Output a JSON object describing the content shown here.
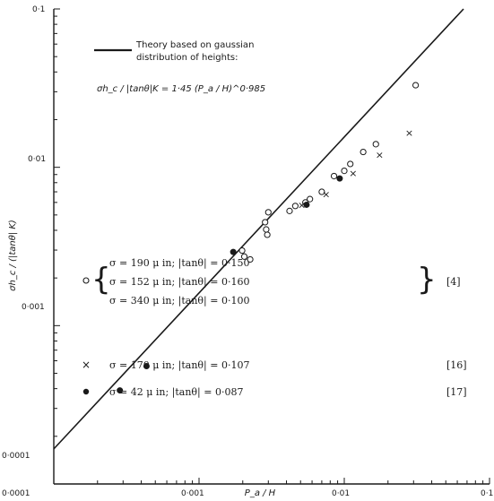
{
  "chart_data": {
    "type": "scatter",
    "x_scale": "log",
    "y_scale": "log",
    "xlim": [
      0.0001,
      0.1
    ],
    "ylim": [
      0.0001,
      0.1
    ],
    "x_ticks": [
      "0·0001",
      "0·001",
      "0·01",
      "0·1"
    ],
    "y_ticks": [
      "0·0001",
      "0·001",
      "0·01",
      "0·1"
    ],
    "xlabel": "P_a / H",
    "ylabel": "σh_c / (|tanθ| K)",
    "grid": false,
    "theory": {
      "label_line1": "Theory based on gaussian",
      "label_line2": "distribution of heights:",
      "equation": "σh_c / |tanθ|K = 1·45 (P_a / H)^0·985",
      "coefficient": 1.45,
      "exponent": 0.985
    },
    "series": [
      {
        "marker": "open-circle",
        "labels": [
          "σ = 190 μ in;  |tanθ| = 0·150",
          "σ = 152 μ in;  |tanθ| = 0·160",
          "σ = 340 μ in;  |tanθ| = 0·100"
        ],
        "reference": "[4]",
        "points": [
          [
            0.00198,
            0.00298
          ],
          [
            0.00205,
            0.00273
          ],
          [
            0.00225,
            0.00262
          ],
          [
            0.00285,
            0.0045
          ],
          [
            0.0029,
            0.00405
          ],
          [
            0.00295,
            0.00375
          ],
          [
            0.003,
            0.0052
          ],
          [
            0.0042,
            0.0053
          ],
          [
            0.0046,
            0.0057
          ],
          [
            0.0054,
            0.006
          ],
          [
            0.0058,
            0.0063
          ],
          [
            0.007,
            0.007
          ],
          [
            0.0085,
            0.0088
          ],
          [
            0.01,
            0.0095
          ],
          [
            0.011,
            0.0105
          ],
          [
            0.0135,
            0.0125
          ],
          [
            0.0165,
            0.014
          ],
          [
            0.031,
            0.033
          ]
        ]
      },
      {
        "marker": "cross",
        "labels": [
          "σ = 170 μ in;  |tanθ| = 0·107"
        ],
        "reference": "[16]",
        "points": [
          [
            0.0051,
            0.0058
          ],
          [
            0.0075,
            0.0068
          ],
          [
            0.0115,
            0.0092
          ],
          [
            0.0175,
            0.012
          ],
          [
            0.028,
            0.0165
          ]
        ]
      },
      {
        "marker": "filled-circle",
        "labels": [
          "σ = 42 μ in;  |tanθ| = 0·087"
        ],
        "reference": "[17]",
        "points": [
          [
            0.000285,
            0.00039
          ],
          [
            0.000435,
            0.000555
          ],
          [
            0.00172,
            0.00292
          ],
          [
            0.0055,
            0.0058
          ],
          [
            0.0093,
            0.0085
          ]
        ]
      }
    ]
  }
}
